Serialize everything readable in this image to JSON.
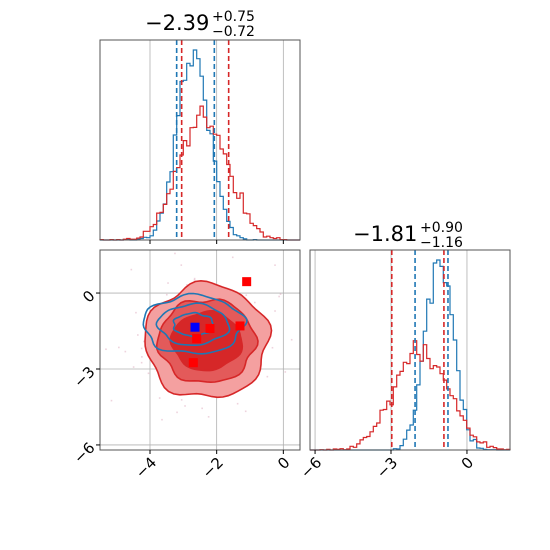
{
  "colors": {
    "blue": "#1f77b4",
    "red": "#d62728",
    "red_light": "#f4a0a0",
    "red_mid": "#e35a5a",
    "grid": "#b0b0b0"
  },
  "chart_data": [
    {
      "type": "histogram",
      "panel": "top-left",
      "title": {
        "value": "−2.39",
        "upper": "+0.75",
        "lower": "−0.72"
      },
      "xlim": [
        -5.5,
        0.5
      ],
      "grid": true,
      "quantiles": {
        "blue": [
          -3.2,
          -2.07
        ],
        "red": [
          -3.05,
          -1.64
        ]
      },
      "series": [
        {
          "color": "blue",
          "center": -2.7,
          "spread": 0.48
        },
        {
          "color": "red",
          "center": -2.39,
          "spread": 0.72
        }
      ]
    },
    {
      "type": "contour",
      "panel": "bottom-left",
      "xlim": [
        -5.5,
        0.5
      ],
      "ylim": [
        -6.2,
        1.7
      ],
      "xticks": [
        "−4",
        "−2",
        "0"
      ],
      "yticks": [
        "0",
        "−3",
        "−6"
      ],
      "xtick_values": [
        -4,
        -2,
        0
      ],
      "ytick_values": [
        0,
        -3,
        -6
      ],
      "grid": true,
      "markers": [
        {
          "x": -2.65,
          "y": -1.35,
          "color": "blue"
        },
        {
          "x": -1.1,
          "y": 0.45,
          "color": "red"
        },
        {
          "x": -2.2,
          "y": -1.4,
          "color": "red"
        },
        {
          "x": -2.6,
          "y": -1.8,
          "color": "red"
        },
        {
          "x": -1.3,
          "y": -1.3,
          "color": "red"
        },
        {
          "x": -2.7,
          "y": -2.75,
          "color": "red"
        }
      ]
    },
    {
      "type": "histogram",
      "panel": "bottom-right",
      "title": {
        "value": "−1.81",
        "upper": "+0.90",
        "lower": "−1.16"
      },
      "xlim": [
        -6.2,
        1.7
      ],
      "xticks": [
        "−6",
        "−3",
        "0"
      ],
      "xtick_values": [
        -6,
        -3,
        0
      ],
      "grid": true,
      "quantiles": {
        "blue": [
          -2.05,
          -0.75
        ],
        "red": [
          -2.97,
          -0.91
        ]
      },
      "series": [
        {
          "color": "blue",
          "center": -1.1,
          "spread": 0.55
        },
        {
          "color": "red",
          "center": -1.81,
          "spread": 1.05
        }
      ]
    }
  ]
}
